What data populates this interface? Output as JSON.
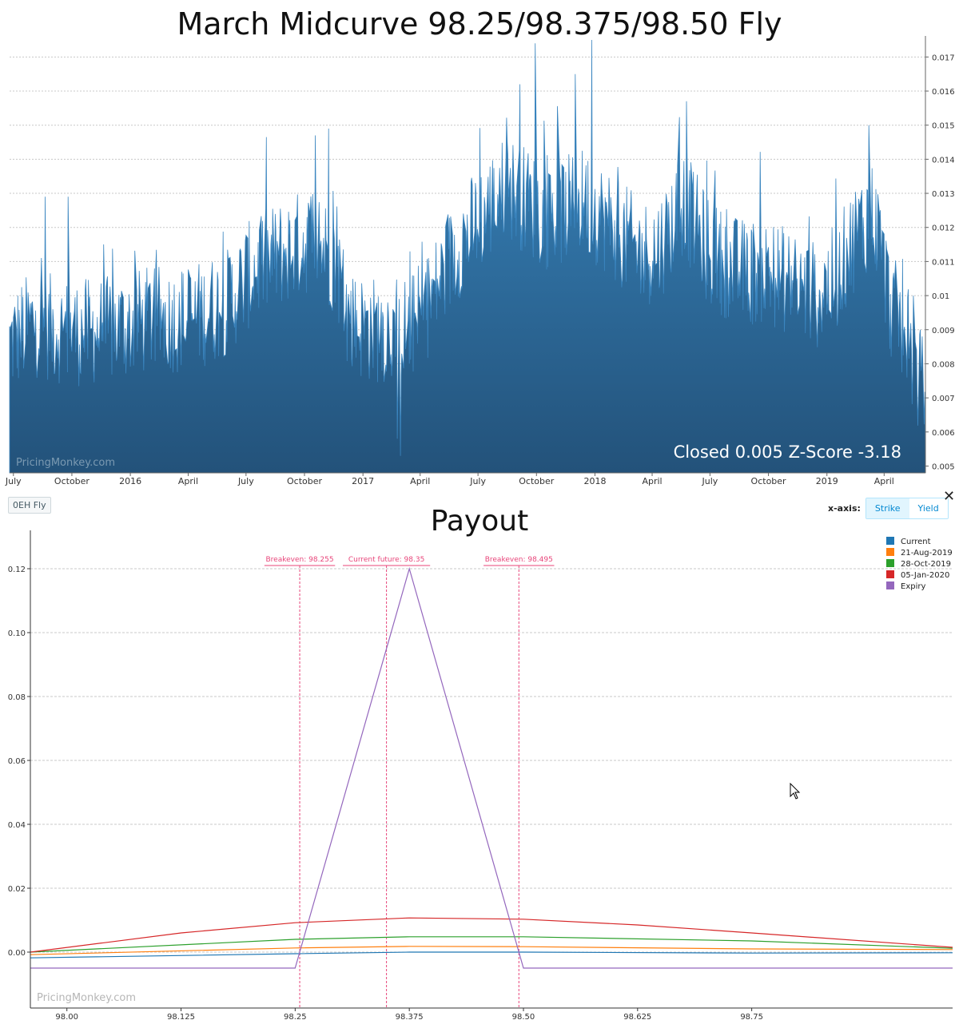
{
  "top": {
    "title": "March Midcurve 98.25/98.375/98.50 Fly",
    "watermark": "PricingMonkey.com",
    "closed_text": "Closed 0.005 Z-Score -3.18",
    "color": "#2f74a8"
  },
  "toolbar": {
    "badge": "0EH Fly",
    "xaxis_label": "x-axis:",
    "strike_label": "Strike",
    "yield_label": "Yield",
    "close_symbol": "✕"
  },
  "bottom": {
    "title": "Payout",
    "watermark": "PricingMonkey.com"
  },
  "chart_data": [
    {
      "type": "area",
      "title": "March Midcurve 98.25/98.375/98.50 Fly",
      "y_axis_side": "right",
      "ylim": [
        0.0048,
        0.0175
      ],
      "y_ticks": [
        "0.005",
        "0.006",
        "0.007",
        "0.008",
        "0.009",
        "0.01",
        "0.011",
        "0.012",
        "0.013",
        "0.014",
        "0.015",
        "0.016",
        "0.017"
      ],
      "x_tick_labels": [
        "July",
        "October",
        "2016",
        "April",
        "July",
        "October",
        "2017",
        "April",
        "July",
        "October",
        "2018",
        "April",
        "July",
        "October",
        "2019",
        "April"
      ],
      "series": [
        {
          "x_start": "2015-06-25",
          "x_end": "2019-06-05",
          "anchors": [
            [
              "2015-06-25",
              0.0086
            ],
            [
              "2015-08-01",
              0.0092
            ],
            [
              "2015-10-01",
              0.0089
            ],
            [
              "2015-12-01",
              0.009
            ],
            [
              "2016-02-01",
              0.0093
            ],
            [
              "2016-04-01",
              0.0093
            ],
            [
              "2016-06-01",
              0.0098
            ],
            [
              "2016-07-15",
              0.0108
            ],
            [
              "2016-09-01",
              0.0113
            ],
            [
              "2016-10-15",
              0.0117
            ],
            [
              "2016-11-20",
              0.011
            ],
            [
              "2016-12-10",
              0.0092
            ],
            [
              "2017-01-15",
              0.009
            ],
            [
              "2017-02-15",
              0.009
            ],
            [
              "2017-03-15",
              0.009
            ],
            [
              "2017-04-15",
              0.0098
            ],
            [
              "2017-06-01",
              0.0115
            ],
            [
              "2017-07-15",
              0.0125
            ],
            [
              "2017-08-15",
              0.0132
            ],
            [
              "2017-09-15",
              0.0128
            ],
            [
              "2017-10-15",
              0.0123
            ],
            [
              "2017-11-15",
              0.0125
            ],
            [
              "2017-12-15",
              0.0128
            ],
            [
              "2018-02-01",
              0.012
            ],
            [
              "2018-03-15",
              0.0112
            ],
            [
              "2018-04-15",
              0.0115
            ],
            [
              "2018-05-20",
              0.0128
            ],
            [
              "2018-07-01",
              0.0112
            ],
            [
              "2018-08-15",
              0.0107
            ],
            [
              "2018-10-01",
              0.0107
            ],
            [
              "2018-11-15",
              0.0103
            ],
            [
              "2018-12-15",
              0.01
            ],
            [
              "2019-01-15",
              0.0105
            ],
            [
              "2019-02-15",
              0.0118
            ],
            [
              "2019-03-15",
              0.0125
            ],
            [
              "2019-04-10",
              0.0098
            ],
            [
              "2019-05-01",
              0.009
            ],
            [
              "2019-05-20",
              0.0078
            ],
            [
              "2019-06-05",
              0.007
            ]
          ],
          "dips": [
            [
              "2017-03-01",
              0.0053
            ],
            [
              "2017-02-25",
              0.0058
            ]
          ],
          "spikes": [
            [
              "2017-09-30",
              0.0174
            ],
            [
              "2017-12-27",
              0.0175
            ],
            [
              "2017-12-01",
              0.0165
            ],
            [
              "2017-09-05",
              0.0162
            ],
            [
              "2018-05-25",
              0.0157
            ],
            [
              "2016-10-18",
              0.0147
            ],
            [
              "2016-11-08",
              0.0149
            ],
            [
              "2019-03-08",
              0.015
            ],
            [
              "2019-05-18",
              0.01
            ],
            [
              "2019-05-28",
              0.009
            ],
            [
              "2015-08-20",
              0.0129
            ],
            [
              "2015-09-25",
              0.0129
            ]
          ],
          "last_value": 0.005
        }
      ]
    },
    {
      "type": "line",
      "title": "Payout",
      "xlim": [
        97.96,
        98.97
      ],
      "ylim": [
        -0.0175,
        0.132
      ],
      "x_ticks": [
        "98.00",
        "98.125",
        "98.25",
        "98.375",
        "98.50",
        "98.625",
        "98.75"
      ],
      "y_ticks": [
        "0.00",
        "0.02",
        "0.04",
        "0.06",
        "0.08",
        "0.10",
        "0.12"
      ],
      "legend": "top-right",
      "annotations": [
        {
          "label": "Breakeven: 98.255",
          "x": 98.255
        },
        {
          "label": "Current future: 98.35",
          "x": 98.35
        },
        {
          "label": "Breakeven: 98.495",
          "x": 98.495
        }
      ],
      "series": [
        {
          "name": "Current",
          "color": "#1f77b4",
          "x": [
            97.96,
            98.25,
            98.375,
            98.5,
            98.75,
            98.97
          ],
          "y": [
            -0.0018,
            -0.0005,
            0.0,
            0.0,
            -0.0003,
            -0.0002
          ]
        },
        {
          "name": "21-Aug-2019",
          "color": "#ff7f0e",
          "x": [
            97.96,
            98.25,
            98.375,
            98.5,
            98.75,
            98.97
          ],
          "y": [
            -0.0008,
            0.0013,
            0.0018,
            0.0017,
            0.001,
            0.0008
          ]
        },
        {
          "name": "28-Oct-2019",
          "color": "#2ca02c",
          "x": [
            97.96,
            98.25,
            98.375,
            98.5,
            98.75,
            98.97
          ],
          "y": [
            0.0,
            0.004,
            0.0048,
            0.0048,
            0.0035,
            0.0012
          ]
        },
        {
          "name": "05-Jan-2020",
          "color": "#d62728",
          "x": [
            97.96,
            98.125,
            98.25,
            98.375,
            98.5,
            98.625,
            98.75,
            98.97
          ],
          "y": [
            0.0,
            0.006,
            0.0092,
            0.0107,
            0.0103,
            0.0085,
            0.006,
            0.0015
          ]
        },
        {
          "name": "Expiry",
          "color": "#9467bd",
          "x": [
            97.96,
            98.25,
            98.375,
            98.5,
            98.97
          ],
          "y": [
            -0.005,
            -0.005,
            0.12,
            -0.005,
            -0.005
          ]
        }
      ]
    }
  ]
}
